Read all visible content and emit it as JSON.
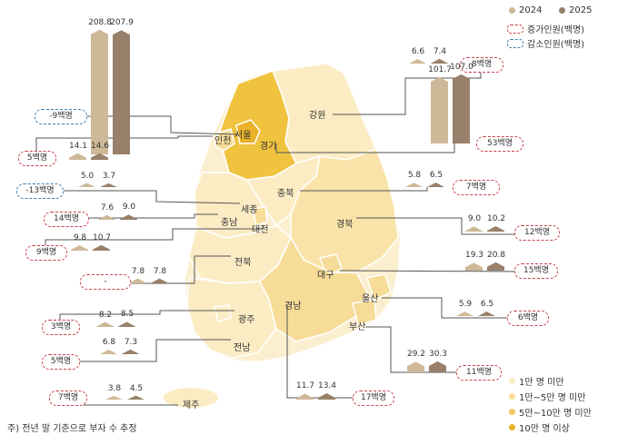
{
  "legend": {
    "years": [
      {
        "label": "2024",
        "color": "#cdb997"
      },
      {
        "label": "2025",
        "color": "#98806a"
      }
    ],
    "increase_label": "증가인원(백명)",
    "decrease_label": "감소인원(백명)",
    "increase_color": "#c9414b",
    "decrease_color": "#3f7fae",
    "scale": [
      {
        "label": "1만 명 미만",
        "color": "#fbecc4"
      },
      {
        "label": "1만~5만 명 미만",
        "color": "#f6dc97"
      },
      {
        "label": "5만~10만 명 미만",
        "color": "#f1c95e"
      },
      {
        "label": "10만 명 이상",
        "color": "#eab22a"
      }
    ]
  },
  "regions": [
    {
      "name": "서울",
      "v2024": "208.8",
      "v2025": "207.9",
      "change": "-9백명",
      "type": "decrease"
    },
    {
      "name": "강원",
      "v2024": "6.6",
      "v2025": "7.4",
      "change": "8백명",
      "type": "increase"
    },
    {
      "name": "경기",
      "v2024": "101.7",
      "v2025": "107.0",
      "change": "53백명",
      "type": "increase"
    },
    {
      "name": "인천",
      "v2024": "14.1",
      "v2025": "14.6",
      "change": "5백명",
      "type": "increase"
    },
    {
      "name": "세종",
      "v2024": "5.0",
      "v2025": "3.7",
      "change": "-13백명",
      "type": "decrease"
    },
    {
      "name": "충북",
      "v2024": "5.8",
      "v2025": "6.5",
      "change": "7백명",
      "type": "increase"
    },
    {
      "name": "충남",
      "v2024": "7.6",
      "v2025": "9.0",
      "change": "14백명",
      "type": "increase"
    },
    {
      "name": "대전",
      "v2024": "9.8",
      "v2025": "10.7",
      "change": "9백명",
      "type": "increase"
    },
    {
      "name": "경북",
      "v2024": "9.0",
      "v2025": "10.2",
      "change": "12백명",
      "type": "increase"
    },
    {
      "name": "대구",
      "v2024": "19.3",
      "v2025": "20.8",
      "change": "15백명",
      "type": "increase"
    },
    {
      "name": "전북",
      "v2024": "7.8",
      "v2025": "7.8",
      "change": "-",
      "type": "neutral"
    },
    {
      "name": "울산",
      "v2024": "5.9",
      "v2025": "6.5",
      "change": "6백명",
      "type": "increase"
    },
    {
      "name": "광주",
      "v2024": "8.2",
      "v2025": "8.5",
      "change": "3백명",
      "type": "increase"
    },
    {
      "name": "부산",
      "v2024": "29.2",
      "v2025": "30.3",
      "change": "11백명",
      "type": "increase"
    },
    {
      "name": "전남",
      "v2024": "6.8",
      "v2025": "7.3",
      "change": "5백명",
      "type": "increase"
    },
    {
      "name": "경남",
      "v2024": "11.7",
      "v2025": "13.4",
      "change": "17백명",
      "type": "increase"
    },
    {
      "name": "제주",
      "v2024": "3.8",
      "v2025": "4.5",
      "change": "7백명",
      "type": "increase"
    }
  ],
  "footnote": "주) 전년 말 기준으로 부자 수 추정"
}
